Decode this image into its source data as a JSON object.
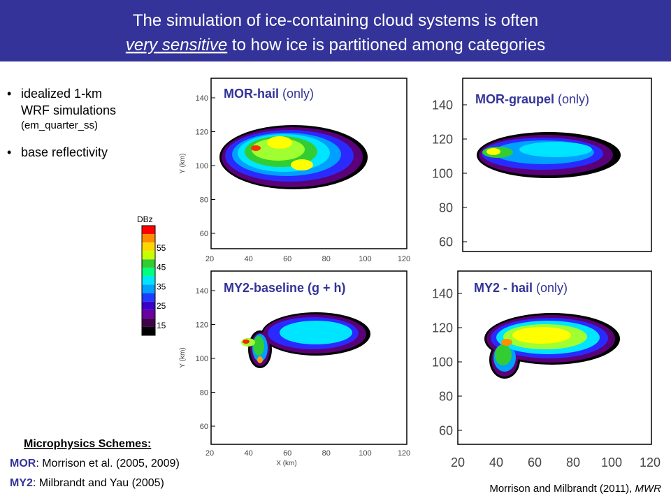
{
  "header": {
    "line1": "The simulation of ice-containing cloud systems is often",
    "line2_emphasis": "very sensitive",
    "line2_rest": " to how ice is partitioned among categories"
  },
  "bullets": [
    {
      "lines": [
        "idealized 1-km",
        "WRF simulations"
      ],
      "sub": "(em_quarter_ss)"
    },
    {
      "lines": [
        "base reflectivity"
      ]
    }
  ],
  "colorbar": {
    "title": "DBz",
    "labels": [
      55,
      45,
      35,
      25,
      15
    ]
  },
  "panels": [
    {
      "name_bold": "MOR-hail",
      "name_rest": " (only)",
      "yticks": [
        140,
        120,
        100,
        80,
        60
      ],
      "xticks": [
        20,
        40,
        60,
        80,
        100,
        120
      ],
      "ylabel": "Y (km)"
    },
    {
      "name_bold": "MOR-graupel",
      "name_rest": " (only)",
      "yticks": [
        140,
        120,
        100,
        80,
        60
      ]
    },
    {
      "name_bold": "MY2-baseline (g + h)",
      "yticks": [
        140,
        120,
        100,
        80,
        60
      ],
      "xticks": [
        20,
        40,
        60,
        80,
        100,
        120
      ],
      "ylabel": "Y (km)",
      "xlabel": "X (km)"
    },
    {
      "name_bold": "MY2 - hail",
      "name_rest": " (only)",
      "yticks": [
        140,
        120,
        100,
        80,
        60
      ],
      "xticks": [
        20,
        40,
        60,
        80,
        100,
        120
      ]
    }
  ],
  "schemes": {
    "heading": "Microphysics Schemes:",
    "items": [
      {
        "abbr": "MOR",
        "text": ":  Morrison et al. (2005, 2009)"
      },
      {
        "abbr": "MY2",
        "text": ":  Milbrandt and Yau (2005)"
      }
    ]
  },
  "citation": {
    "text": "Morrison and Milbrandt (2011), ",
    "journal": "MWR"
  }
}
